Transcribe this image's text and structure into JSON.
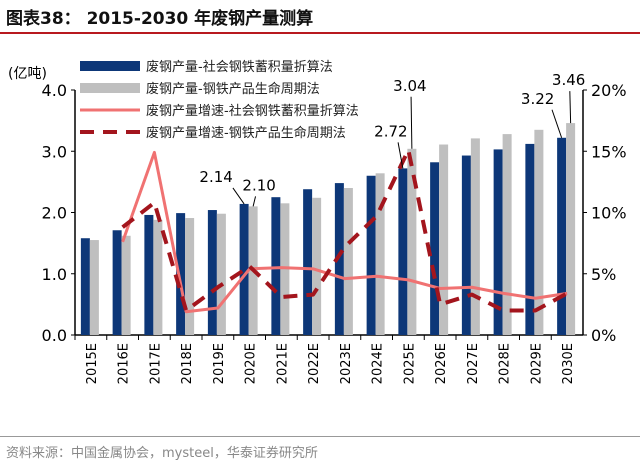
{
  "title": "图表38：  2015-2030 年废钢产量测算",
  "source": "资料来源：中国金属协会，mysteel，华泰证券研究所",
  "chart_data": {
    "type": "bar+line",
    "title": "",
    "ylabel_left": "(亿吨)",
    "ylim_left": [
      0,
      4
    ],
    "yticks_left": [
      "0.0",
      "1.0",
      "2.0",
      "3.0",
      "4.0"
    ],
    "ylim_right": [
      0,
      20
    ],
    "yticks_right": [
      "0%",
      "5%",
      "10%",
      "15%",
      "20%"
    ],
    "legend_position": "top",
    "categories": [
      "2015E",
      "2016E",
      "2017E",
      "2018E",
      "2019E",
      "2020E",
      "2021E",
      "2022E",
      "2023E",
      "2024E",
      "2025E",
      "2026E",
      "2027E",
      "2028E",
      "2029E",
      "2030E"
    ],
    "series": [
      {
        "name": "废钢产量-社会钢铁蓄积量折算法",
        "type": "bar",
        "axis": "left",
        "color": "#0d3778",
        "values": [
          1.58,
          1.71,
          1.96,
          1.99,
          2.04,
          2.14,
          2.25,
          2.38,
          2.48,
          2.6,
          2.72,
          2.82,
          2.93,
          3.03,
          3.12,
          3.22
        ]
      },
      {
        "name": "废钢产量-钢铁产品生命周期法",
        "type": "bar",
        "axis": "left",
        "color": "#bfbfbf",
        "values": [
          1.55,
          1.62,
          1.88,
          1.91,
          1.98,
          2.1,
          2.15,
          2.24,
          2.4,
          2.64,
          3.04,
          3.11,
          3.21,
          3.28,
          3.35,
          3.46
        ]
      },
      {
        "name": "废钢产量增速-社会钢铁蓄积量折算法",
        "type": "line",
        "axis": "right",
        "color": "#f07272",
        "dash": false,
        "values": [
          null,
          7.6,
          14.9,
          1.9,
          2.2,
          5.4,
          5.5,
          5.4,
          4.6,
          4.8,
          4.5,
          3.8,
          3.9,
          3.4,
          3.0,
          3.4
        ]
      },
      {
        "name": "废钢产量增速-钢铁产品生命周期法",
        "type": "line",
        "axis": "right",
        "color": "#a3151d",
        "dash": true,
        "values": [
          null,
          8.8,
          10.8,
          2.0,
          3.9,
          5.6,
          3.1,
          3.3,
          7.2,
          9.7,
          15.1,
          2.5,
          3.3,
          2.0,
          2.0,
          3.4
        ]
      }
    ],
    "data_labels": [
      {
        "series": 0,
        "category": "2020E",
        "text": "2.14"
      },
      {
        "series": 1,
        "category": "2020E",
        "text": "2.10"
      },
      {
        "series": 0,
        "category": "2025E",
        "text": "2.72"
      },
      {
        "series": 1,
        "category": "2025E",
        "text": "3.04"
      },
      {
        "series": 0,
        "category": "2030E",
        "text": "3.22"
      },
      {
        "series": 1,
        "category": "2030E",
        "text": "3.46"
      }
    ]
  }
}
